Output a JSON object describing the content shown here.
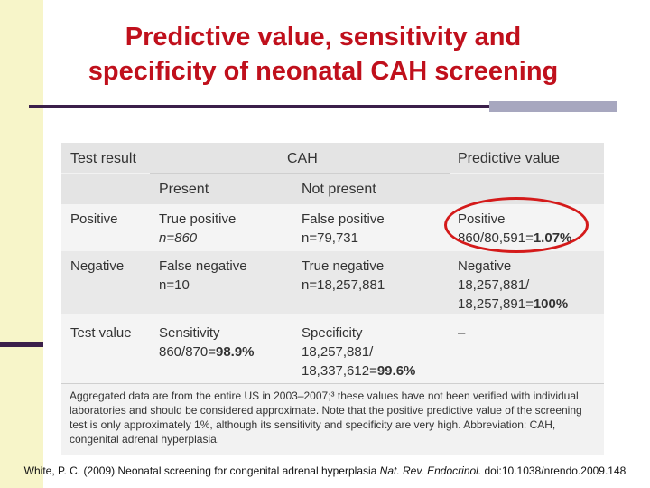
{
  "slide": {
    "title_line1": "Predictive value, sensitivity and",
    "title_line2": "specificity of neonatal CAH screening"
  },
  "table": {
    "header": {
      "test_result": "Test result",
      "cah": "CAH",
      "predictive_value": "Predictive value",
      "present": "Present",
      "not_present": "Not present"
    },
    "rows": [
      {
        "label": "Positive",
        "present_line1": "True positive",
        "present_line2": "n=860",
        "not_present_line1": "False positive",
        "not_present_line2": "n=79,731",
        "pv_line1": "Positive",
        "pv_line2_prefix": "860/80,591=",
        "pv_line2_bold": "1.07%",
        "pv_line3_prefix": "",
        "pv_line3_bold": ""
      },
      {
        "label": "Negative",
        "present_line1": "False negative",
        "present_line2": "n=10",
        "not_present_line1": "True negative",
        "not_present_line2": "n=18,257,881",
        "pv_line1": "Negative",
        "pv_line2_prefix": "18,257,881/",
        "pv_line2_bold": "",
        "pv_line3_prefix": "18,257,891=",
        "pv_line3_bold": "100%"
      },
      {
        "label": "Test value",
        "present_line1": "Sensitivity",
        "present_line2_prefix": "860/870=",
        "present_line2_bold": "98.9%",
        "not_present_line1": "Specificity",
        "not_present_line2": "18,257,881/",
        "not_present_line3_prefix": "18,337,612=",
        "not_present_line3_bold": "99.6%",
        "pv_line1": "–"
      }
    ],
    "note": "Aggregated data are from the entire US in 2003–2007;³ these values have not been verified with individual laboratories and should be considered approximate. Note that the positive predictive value of the screening test is only approximately 1%, although its sensitivity and specificity are very high. Abbreviation: CAH, congenital adrenal hyperplasia."
  },
  "citation": {
    "prefix": "White, P. C. (2009) Neonatal screening for congenital adrenal hyperplasia ",
    "journal": "Nat. Rev. Endocrinol.",
    "suffix": " doi:10.1038/nrendo.2009.148"
  },
  "colors": {
    "title": "#c0101c",
    "rule": "#3b1f4a",
    "left_band": "#f7f5c9",
    "header_bg": "#e6e6e6",
    "row_alt_bg": "#e9e9e9",
    "circle": "#d41a1a"
  }
}
